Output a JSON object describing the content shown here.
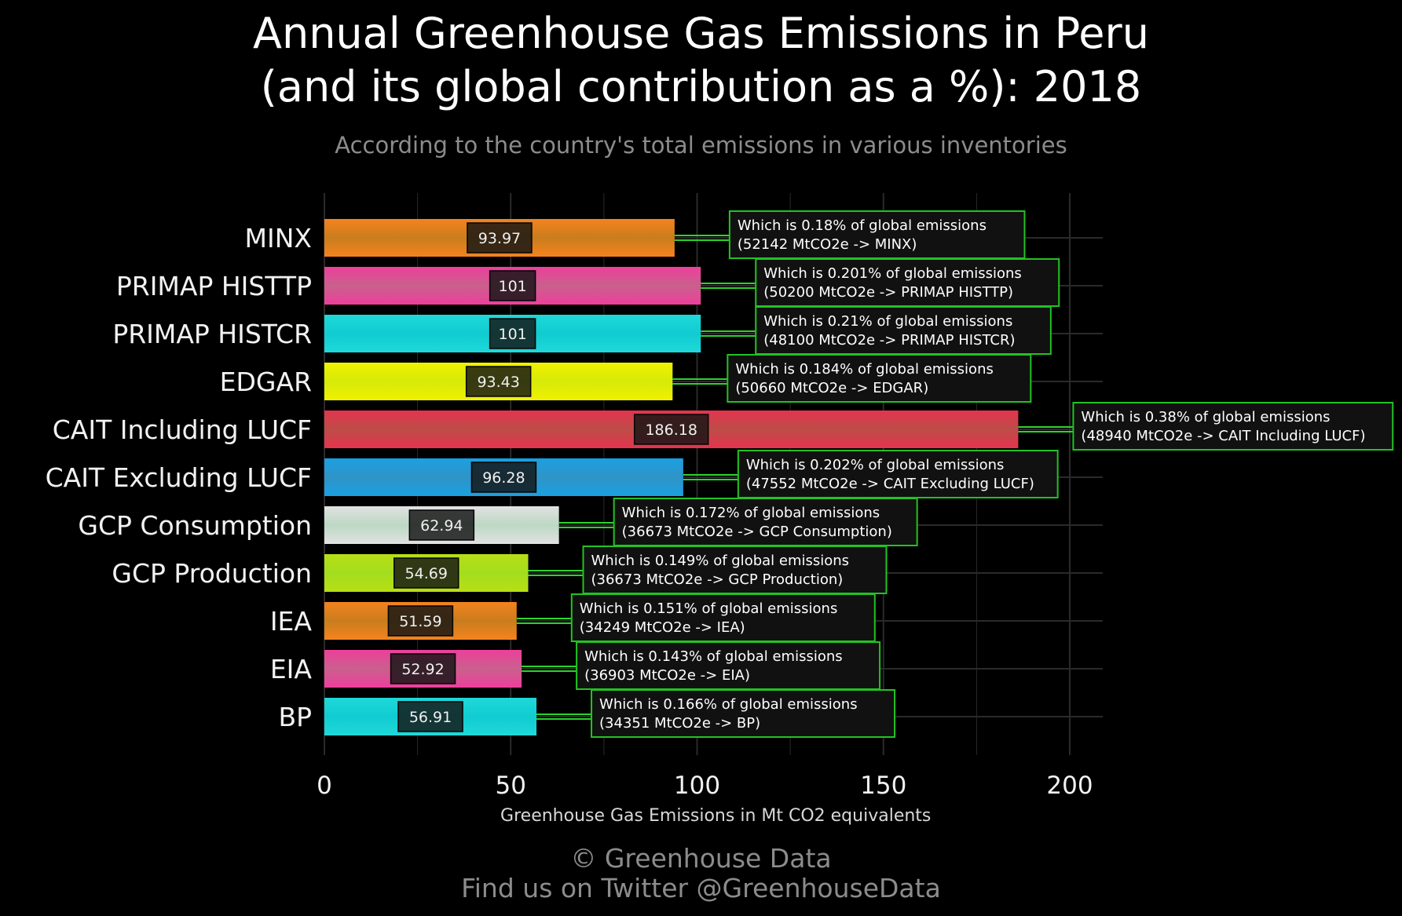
{
  "title": {
    "line1": "Annual Greenhouse Gas Emissions in Peru",
    "line2": "(and its global contribution as a %): 2018"
  },
  "subtitle": "According to the country's total emissions in various inventories",
  "footer": {
    "line1": "© Greenhouse Data",
    "line2": "Find us on Twitter @GreenhouseData"
  },
  "colors": {
    "background": "#000000",
    "grid": "#2a2a2a",
    "annotation_border": "#22c322",
    "annotation_fill": "#111111",
    "connector": "#2bd42b",
    "text_muted": "#8c8c8c"
  },
  "chart_data": {
    "type": "bar",
    "orientation": "horizontal",
    "xlabel": "Greenhouse Gas Emissions in Mt CO2 equivalents",
    "ylabel": "",
    "xlim": [
      0,
      210
    ],
    "xticks": [
      0,
      50,
      100,
      150,
      200
    ],
    "grid": true,
    "categories": [
      "MINX",
      "PRIMAP HISTTP",
      "PRIMAP HISTCR",
      "EDGAR",
      "CAIT Including LUCF",
      "CAIT Excluding LUCF",
      "GCP Consumption",
      "GCP Production",
      "IEA",
      "EIA",
      "BP"
    ],
    "values": [
      93.97,
      101,
      101,
      93.43,
      186.18,
      96.28,
      62.94,
      54.69,
      51.59,
      52.92,
      56.91
    ],
    "value_labels": [
      "93.97",
      "101",
      "101",
      "93.43",
      "186.18",
      "96.28",
      "62.94",
      "54.69",
      "51.59",
      "52.92",
      "56.91"
    ],
    "bar_colors": [
      [
        "#f4831f",
        "#c97d1d"
      ],
      [
        "#ee3f9c",
        "#c9608c"
      ],
      [
        "#1fd8d8",
        "#10ccd2"
      ],
      [
        "#f1f100",
        "#d6ea08"
      ],
      [
        "#e4334f",
        "#bd4d47"
      ],
      [
        "#1aa0e2",
        "#2f94c6"
      ],
      [
        "#e2e2e2",
        "#bcd8c4"
      ],
      [
        "#b8df15",
        "#a3dd1d"
      ],
      [
        "#f4831f",
        "#c97d1d"
      ],
      [
        "#ee3f9c",
        "#c9608c"
      ],
      [
        "#1fd8d8",
        "#10ccd2"
      ]
    ],
    "annotations": [
      {
        "line1": "Which is 0.18% of global emissions",
        "line2": "(52142 MtCO2e -> MINX)"
      },
      {
        "line1": "Which is 0.201% of global emissions",
        "line2": "(50200 MtCO2e -> PRIMAP HISTTP)"
      },
      {
        "line1": "Which is 0.21% of global emissions",
        "line2": "(48100 MtCO2e -> PRIMAP HISTCR)"
      },
      {
        "line1": "Which is 0.184% of global emissions",
        "line2": "(50660 MtCO2e -> EDGAR)"
      },
      {
        "line1": "Which is 0.38% of global emissions",
        "line2": "(48940 MtCO2e -> CAIT Including LUCF)"
      },
      {
        "line1": "Which is 0.202% of global emissions",
        "line2": "(47552 MtCO2e -> CAIT Excluding LUCF)"
      },
      {
        "line1": "Which is 0.172% of global emissions",
        "line2": "(36673 MtCO2e -> GCP Consumption)"
      },
      {
        "line1": "Which is 0.149% of global emissions",
        "line2": "(36673 MtCO2e -> GCP Production)"
      },
      {
        "line1": "Which is 0.151% of global emissions",
        "line2": "(34249 MtCO2e -> IEA)"
      },
      {
        "line1": "Which is 0.143% of global emissions",
        "line2": "(36903 MtCO2e -> EIA)"
      },
      {
        "line1": "Which is 0.166% of global emissions",
        "line2": "(34351 MtCO2e -> BP)"
      }
    ]
  }
}
